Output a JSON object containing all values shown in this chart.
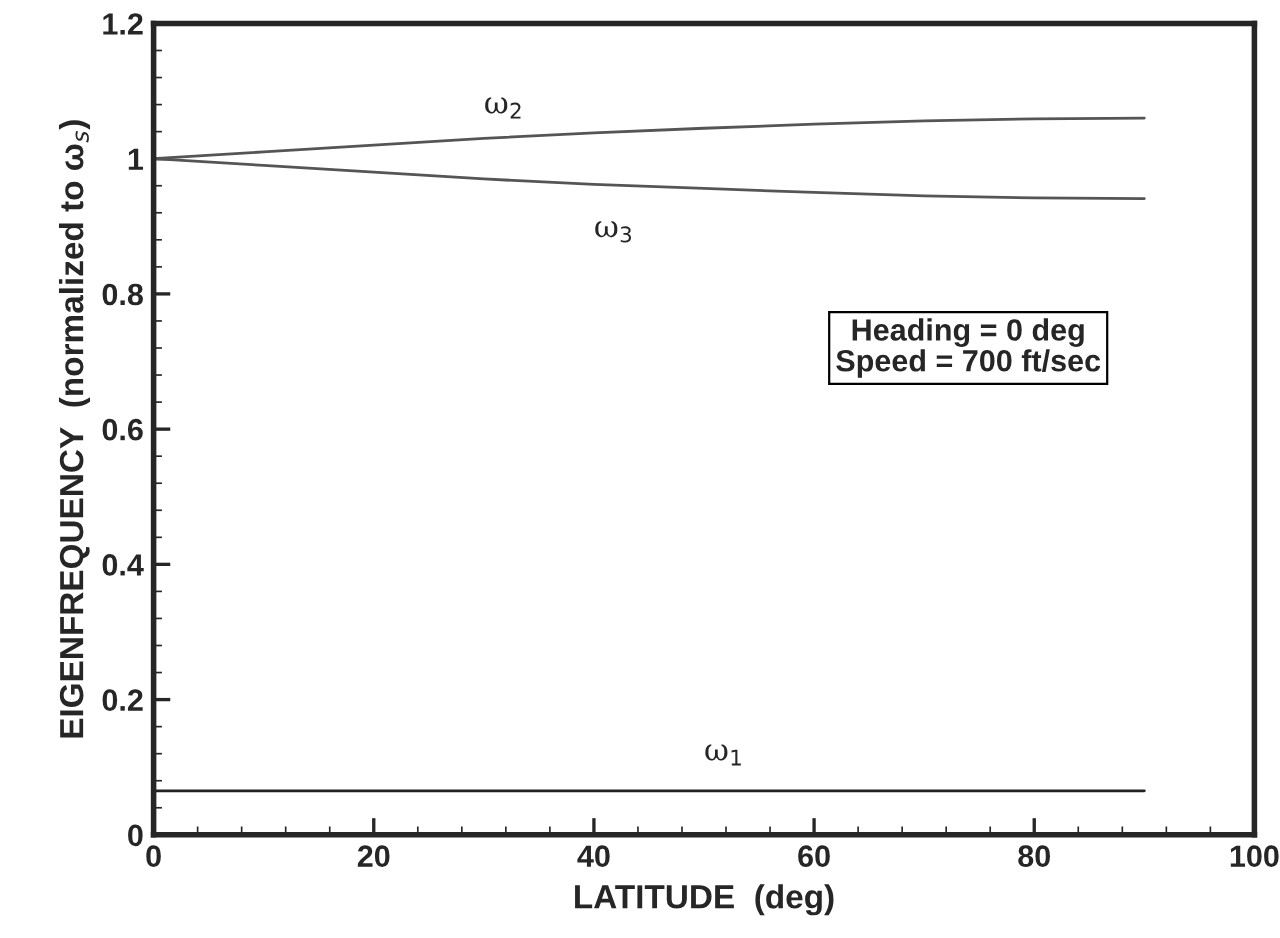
{
  "chart_data": {
    "type": "line",
    "xlabel": "LATITUDE  (deg)",
    "ylabel": "EIGENFREQUENCY  (normalized to ω$_{s}$)",
    "x": [
      0,
      10,
      20,
      30,
      40,
      50,
      60,
      70,
      80,
      90
    ],
    "series": [
      {
        "name": "ω$_{1}$",
        "color": "#222222",
        "values": [
          0.065,
          0.065,
          0.065,
          0.065,
          0.065,
          0.065,
          0.065,
          0.065,
          0.065,
          0.065
        ]
      },
      {
        "name": "ω$_{2}$",
        "color": "#555555",
        "values": [
          1.0,
          1.01,
          1.02,
          1.03,
          1.038,
          1.045,
          1.051,
          1.056,
          1.059,
          1.06
        ]
      },
      {
        "name": "ω$_{3}$",
        "color": "#555555",
        "values": [
          1.0,
          0.99,
          0.98,
          0.97,
          0.962,
          0.956,
          0.95,
          0.945,
          0.942,
          0.941
        ]
      }
    ],
    "annotations": [
      "Heading = 0 deg\nSpeed = 700 ft/sec"
    ],
    "xlim": [
      0,
      100
    ],
    "xticks": [
      0,
      20,
      40,
      60,
      80,
      100
    ],
    "ylim": [
      0,
      1.2
    ],
    "yticks": [
      0,
      0.2,
      0.4,
      0.6,
      0.8,
      1,
      1.2
    ],
    "grid": false,
    "legend": false,
    "marker": "none",
    "line_style": "solid"
  }
}
